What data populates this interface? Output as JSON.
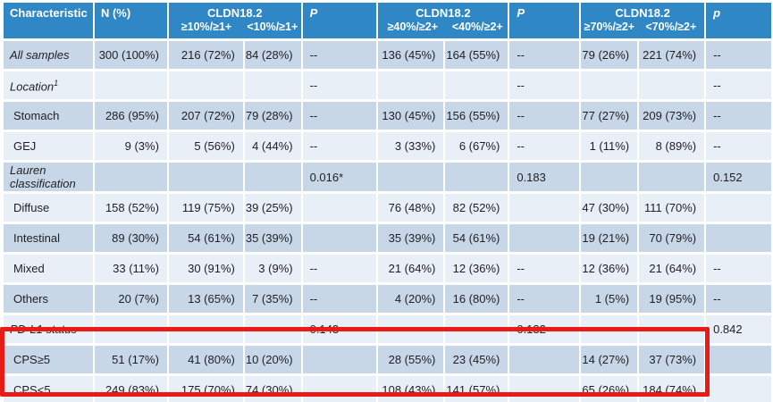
{
  "colors": {
    "header_bg": "#2f87c5",
    "row_dark": "#c8d7e8",
    "row_light": "#e9eff6",
    "header_text": "#ffffff",
    "body_text": "#1f1f23",
    "highlight_red": "#e81c15"
  },
  "table": {
    "header": {
      "characteristic": "Characteristic",
      "n": "N (%)",
      "groups": [
        {
          "title": "CLDN18.2",
          "sub": [
            "≥10%/≥1+",
            "<10%/≥1+"
          ],
          "p_label": "P"
        },
        {
          "title": "CLDN18.2",
          "sub": [
            "≥40%/≥2+",
            "<40%/≥2+"
          ],
          "p_label": "P"
        },
        {
          "title": "CLDN18.2",
          "sub": [
            "≥70%/≥2+",
            "<70%/≥2+"
          ],
          "p_label": "p"
        }
      ]
    },
    "rows": [
      {
        "label": "All samples",
        "italic": true,
        "indent": false,
        "cells": [
          "300 (100%)",
          "216 (72%)",
          "84 (28%)",
          "--",
          "136 (45%)",
          "164 (55%)",
          "--",
          "79 (26%)",
          "221 (74%)",
          "--"
        ]
      },
      {
        "label": "Location",
        "sup": "1",
        "italic": true,
        "indent": false,
        "cells": [
          "",
          "",
          "",
          "--",
          "",
          "",
          "--",
          "",
          "",
          "--"
        ]
      },
      {
        "label": "Stomach",
        "italic": false,
        "indent": true,
        "cells": [
          "286 (95%)",
          "207 (72%)",
          "79 (28%)",
          "--",
          "130 (45%)",
          "156 (55%)",
          "--",
          "77 (27%)",
          "209 (73%)",
          "--"
        ]
      },
      {
        "label": "GEJ",
        "italic": false,
        "indent": true,
        "cells": [
          "9 (3%)",
          "5 (56%)",
          "4 (44%)",
          "--",
          "3 (33%)",
          "6 (67%)",
          "--",
          "1 (11%)",
          "8 (89%)",
          "--"
        ]
      },
      {
        "label": "Lauren classification",
        "italic": true,
        "indent": false,
        "cells": [
          "",
          "",
          "",
          "0.016*",
          "",
          "",
          "0.183",
          "",
          "",
          "0.152"
        ]
      },
      {
        "label": "Diffuse",
        "italic": false,
        "indent": true,
        "cells": [
          "158 (52%)",
          "119 (75%)",
          "39 (25%)",
          "",
          "76 (48%)",
          "82 (52%)",
          "",
          "47 (30%)",
          "111 (70%)",
          ""
        ]
      },
      {
        "label": "Intestinal",
        "italic": false,
        "indent": true,
        "cells": [
          "89 (30%)",
          "54 (61%)",
          "35 (39%)",
          "",
          "35 (39%)",
          "54 (61%)",
          "",
          "19 (21%)",
          "70 (79%)",
          ""
        ]
      },
      {
        "label": "Mixed",
        "italic": false,
        "indent": true,
        "cells": [
          "33 (11%)",
          "30 (91%)",
          "3 (9%)",
          "--",
          "21 (64%)",
          "12 (36%)",
          "--",
          "12 (36%)",
          "21 (64%)",
          "--"
        ]
      },
      {
        "label": "Others",
        "italic": false,
        "indent": true,
        "cells": [
          "20 (7%)",
          "13 (65%)",
          "7 (35%)",
          "--",
          "4 (20%)",
          "16 (80%)",
          "--",
          "1 (5%)",
          "19 (95%)",
          "--"
        ]
      },
      {
        "label": "PD-L1 status",
        "italic": true,
        "indent": false,
        "cells": [
          "",
          "",
          "",
          "0.143",
          "",
          "",
          "0.132",
          "",
          "",
          "0.842"
        ]
      },
      {
        "label": "CPS≥5",
        "italic": false,
        "indent": true,
        "cells": [
          "51 (17%)",
          "41 (80%)",
          "10 (20%)",
          "",
          "28 (55%)",
          "23 (45%)",
          "",
          "14 (27%)",
          "37 (73%)",
          ""
        ]
      },
      {
        "label": "CPS<5",
        "italic": false,
        "indent": true,
        "cells": [
          "249 (83%)",
          "175 (70%)",
          "74 (30%)",
          "",
          "108 (43%)",
          "141 (57%)",
          "",
          "65 (26%)",
          "184 (74%)",
          ""
        ]
      }
    ]
  },
  "highlight": {
    "highlighted_rows": [
      "CPS≥5",
      "CPS<5"
    ],
    "color": "#e81c15"
  }
}
